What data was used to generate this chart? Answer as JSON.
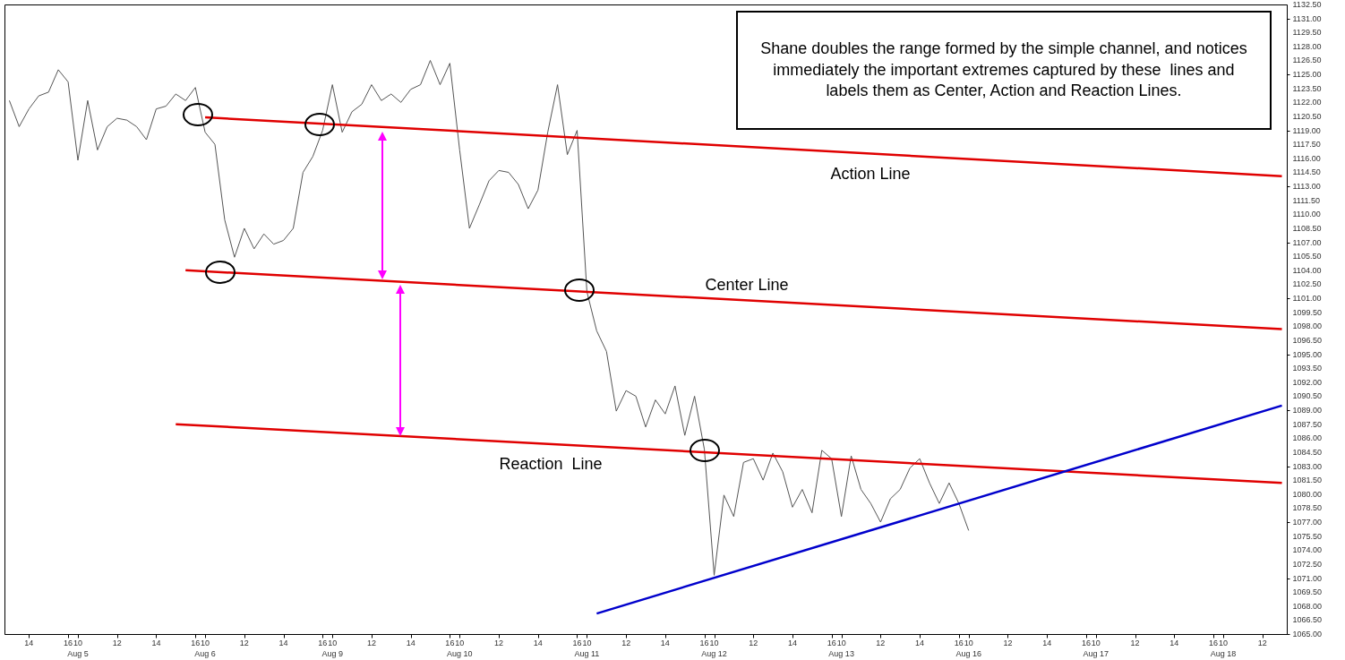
{
  "chart_data": {
    "type": "line",
    "categories": [
      null,
      null,
      "14",
      null,
      null,
      null,
      "16",
      "10\nAug 5",
      null,
      null,
      null,
      "12",
      null,
      null,
      null,
      "14",
      null,
      null,
      null,
      "16",
      "10\nAug 6",
      null,
      null,
      null,
      "12",
      null,
      null,
      null,
      "14",
      null,
      null,
      null,
      "16",
      "10\nAug 9",
      null,
      null,
      null,
      "12",
      null,
      null,
      null,
      "14",
      null,
      null,
      null,
      "16",
      "10\nAug 10",
      null,
      null,
      null,
      "12",
      null,
      null,
      null,
      "14",
      null,
      null,
      null,
      "16",
      "10\nAug 11",
      null,
      null,
      null,
      "12",
      null,
      null,
      null,
      "14",
      null,
      null,
      null,
      "16",
      "10\nAug 12",
      null,
      null,
      null,
      "12",
      null,
      null,
      null,
      "14",
      null,
      null,
      null,
      "16",
      "10\nAug 13",
      null,
      null,
      null,
      "12",
      null,
      null,
      null,
      "14",
      null,
      null,
      null,
      "16",
      "10\nAug 16",
      null,
      null,
      null,
      "12",
      null,
      null,
      null,
      "14",
      null,
      null,
      null,
      "16",
      "10\nAug 17",
      null,
      null,
      null,
      "12",
      null,
      null,
      null,
      "14",
      null,
      null,
      null,
      "16",
      "10\nAug 18",
      null,
      null,
      null,
      "12",
      null,
      null
    ],
    "ylim": [
      1065,
      1132.5
    ],
    "yticks": [
      {
        "value": 1065,
        "label": "1065.00"
      },
      {
        "value": 1066.5,
        "label": "1066.50"
      },
      {
        "value": 1068,
        "label": "1068.00"
      },
      {
        "value": 1069.5,
        "label": "1069.50"
      },
      {
        "value": 1071,
        "label": "1071.00"
      },
      {
        "value": 1072.5,
        "label": "1072.50"
      },
      {
        "value": 1074,
        "label": "1074.00"
      },
      {
        "value": 1075.5,
        "label": "1075.50"
      },
      {
        "value": 1077,
        "label": "1077.00"
      },
      {
        "value": 1078.5,
        "label": "1078.50"
      },
      {
        "value": 1080,
        "label": "1080.00"
      },
      {
        "value": 1081.5,
        "label": "1081.50"
      },
      {
        "value": 1083,
        "label": "1083.00"
      },
      {
        "value": 1084.5,
        "label": "1084.50"
      },
      {
        "value": 1086,
        "label": "1086.00"
      },
      {
        "value": 1087.5,
        "label": "1087.50"
      },
      {
        "value": 1089,
        "label": "1089.00"
      },
      {
        "value": 1090.5,
        "label": "1090.50"
      },
      {
        "value": 1092,
        "label": "1092.00"
      },
      {
        "value": 1093.5,
        "label": "1093.50"
      },
      {
        "value": 1095,
        "label": "1095.00"
      },
      {
        "value": 1096.5,
        "label": "1096.50"
      },
      {
        "value": 1098,
        "label": "1098.00"
      },
      {
        "value": 1099.5,
        "label": "1099.50"
      },
      {
        "value": 1101,
        "label": "1101.00"
      },
      {
        "value": 1102.5,
        "label": "1102.50"
      },
      {
        "value": 1104,
        "label": "1104.00"
      },
      {
        "value": 1105.5,
        "label": "1105.50"
      },
      {
        "value": 1107,
        "label": "1107.00"
      },
      {
        "value": 1108.5,
        "label": "1108.50"
      },
      {
        "value": 1110,
        "label": "1110.00"
      },
      {
        "value": 1111.5,
        "label": "1111.50"
      },
      {
        "value": 1113,
        "label": "1113.00"
      },
      {
        "value": 1114.5,
        "label": "1114.50"
      },
      {
        "value": 1116,
        "label": "1116.00"
      },
      {
        "value": 1117.5,
        "label": "1117.50"
      },
      {
        "value": 1119,
        "label": "1119.00"
      },
      {
        "value": 1120.5,
        "label": "1120.50"
      },
      {
        "value": 1122,
        "label": "1122.00"
      },
      {
        "value": 1123.5,
        "label": "1123.50"
      },
      {
        "value": 1125,
        "label": "1125.00"
      },
      {
        "value": 1126.5,
        "label": "1126.50"
      },
      {
        "value": 1128,
        "label": "1128.00"
      },
      {
        "value": 1129.5,
        "label": "1129.50"
      },
      {
        "value": 1131,
        "label": "1131.00"
      },
      {
        "value": 1132.5,
        "label": "1132.50"
      }
    ],
    "series": [
      {
        "color": "#555555",
        "values": [
          1122.2,
          1119.4,
          1121.3,
          1122.7,
          1123.1,
          1125.5,
          1124.2,
          1115.8,
          1122.2,
          1116.9,
          1119.4,
          1120.3,
          1120.1,
          1119.4,
          1118.0,
          1121.3,
          1121.6,
          1122.9,
          1122.2,
          1123.6,
          1118.8,
          1117.5,
          1109.4,
          1105.4,
          1108.5,
          1106.3,
          1107.9,
          1106.8,
          1107.2,
          1108.5,
          1114.5,
          1116.2,
          1119.0,
          1123.9,
          1118.8,
          1121.0,
          1121.8,
          1123.9,
          1122.2,
          1122.9,
          1122.0,
          1123.4,
          1123.9,
          1126.5,
          1123.9,
          1126.2,
          1116.9,
          1108.5,
          1111.0,
          1113.6,
          1114.7,
          1114.5,
          1113.2,
          1110.6,
          1112.6,
          1118.8,
          1123.9,
          1116.4,
          1119.0,
          1101.7,
          1097.5,
          1095.3,
          1088.9,
          1091.1,
          1090.5,
          1087.2,
          1090.1,
          1088.6,
          1091.6,
          1086.3,
          1090.5,
          1084.8,
          1071.3,
          1079.9,
          1077.6,
          1083.4,
          1083.8,
          1081.5,
          1084.4,
          1082.4,
          1078.6,
          1080.5,
          1078.0,
          1084.7,
          1083.8,
          1077.6,
          1084.1,
          1080.5,
          1079.0,
          1077.0,
          1079.5,
          1080.5,
          1082.8,
          1083.8,
          1081.2,
          1079.0,
          1081.2,
          1079.0,
          1076.1,
          null,
          null,
          null,
          null,
          null,
          null,
          null,
          null,
          null,
          null,
          null,
          null,
          null,
          null,
          null,
          null,
          null,
          null,
          null,
          null,
          null,
          null,
          null,
          null,
          null,
          null,
          null,
          null,
          null,
          null,
          null,
          null
        ]
      },
      {
        "color": "#e00000",
        "values": [
          null,
          null,
          null,
          null,
          null,
          null,
          null,
          null,
          null,
          null,
          null,
          null,
          null,
          null,
          null,
          null,
          null,
          null,
          null,
          null,
          1120.4,
          null,
          null,
          null,
          null,
          null,
          null,
          null,
          null,
          null,
          null,
          null,
          null,
          null,
          null,
          null,
          null,
          null,
          null,
          null,
          null,
          null,
          null,
          null,
          null,
          null,
          null,
          null,
          null,
          null,
          null,
          null,
          null,
          null,
          null,
          null,
          null,
          null,
          null,
          null,
          null,
          null,
          null,
          null,
          null,
          null,
          null,
          null,
          null,
          null,
          null,
          null,
          null,
          null,
          null,
          null,
          null,
          null,
          null,
          null,
          null,
          null,
          null,
          null,
          null,
          null,
          null,
          null,
          null,
          null,
          null,
          null,
          null,
          null,
          null,
          null,
          null,
          null,
          null,
          null,
          null,
          null,
          null,
          null,
          null,
          null,
          null,
          null,
          null,
          null,
          null,
          null,
          null,
          null,
          null,
          null,
          null,
          null,
          null,
          null,
          null,
          null,
          null,
          null,
          null,
          null,
          null,
          null,
          null,
          null,
          1114.1
        ]
      },
      {
        "color": "#e00000",
        "values": [
          null,
          null,
          null,
          null,
          null,
          null,
          null,
          null,
          null,
          null,
          null,
          null,
          null,
          null,
          null,
          null,
          null,
          null,
          1104.0,
          null,
          null,
          null,
          null,
          null,
          null,
          null,
          null,
          null,
          null,
          null,
          null,
          null,
          null,
          null,
          null,
          null,
          null,
          null,
          null,
          null,
          null,
          null,
          null,
          null,
          null,
          null,
          null,
          null,
          null,
          null,
          null,
          null,
          null,
          null,
          null,
          null,
          null,
          null,
          null,
          null,
          null,
          null,
          null,
          null,
          null,
          null,
          null,
          null,
          null,
          null,
          null,
          null,
          null,
          null,
          null,
          null,
          null,
          null,
          null,
          null,
          null,
          null,
          null,
          null,
          null,
          null,
          null,
          null,
          null,
          null,
          null,
          null,
          null,
          null,
          null,
          null,
          null,
          null,
          null,
          null,
          null,
          null,
          null,
          null,
          null,
          null,
          null,
          null,
          null,
          null,
          null,
          null,
          null,
          null,
          null,
          null,
          null,
          null,
          null,
          null,
          null,
          null,
          null,
          null,
          null,
          null,
          null,
          null,
          null,
          null,
          1097.7
        ]
      },
      {
        "color": "#e00000",
        "values": [
          null,
          null,
          null,
          null,
          null,
          null,
          null,
          null,
          null,
          null,
          null,
          null,
          null,
          null,
          null,
          null,
          null,
          1087.5,
          null,
          null,
          null,
          null,
          null,
          null,
          null,
          null,
          null,
          null,
          null,
          null,
          null,
          null,
          null,
          null,
          null,
          null,
          null,
          null,
          null,
          null,
          null,
          null,
          null,
          null,
          null,
          null,
          null,
          null,
          null,
          null,
          null,
          null,
          null,
          null,
          null,
          null,
          null,
          null,
          null,
          null,
          null,
          null,
          null,
          null,
          null,
          null,
          null,
          null,
          null,
          null,
          null,
          null,
          null,
          null,
          null,
          null,
          null,
          null,
          null,
          null,
          null,
          null,
          null,
          null,
          null,
          null,
          null,
          null,
          null,
          null,
          null,
          null,
          null,
          null,
          null,
          null,
          null,
          null,
          null,
          null,
          null,
          null,
          null,
          null,
          null,
          null,
          null,
          null,
          null,
          null,
          null,
          null,
          null,
          null,
          null,
          null,
          null,
          null,
          null,
          null,
          null,
          null,
          null,
          null,
          null,
          null,
          null,
          null,
          null,
          null,
          1081.2
        ]
      },
      {
        "color": "#0000cc",
        "values": [
          null,
          null,
          null,
          null,
          null,
          null,
          null,
          null,
          null,
          null,
          null,
          null,
          null,
          null,
          null,
          null,
          null,
          null,
          null,
          null,
          null,
          null,
          null,
          null,
          null,
          null,
          null,
          null,
          null,
          null,
          null,
          null,
          null,
          null,
          null,
          null,
          null,
          null,
          null,
          null,
          null,
          null,
          null,
          null,
          null,
          null,
          null,
          null,
          null,
          null,
          null,
          null,
          null,
          null,
          null,
          null,
          null,
          null,
          null,
          null,
          1067.2,
          null,
          null,
          null,
          null,
          null,
          null,
          null,
          null,
          null,
          null,
          null,
          null,
          null,
          null,
          null,
          null,
          null,
          null,
          null,
          null,
          null,
          null,
          null,
          null,
          null,
          null,
          null,
          null,
          null,
          null,
          null,
          null,
          null,
          null,
          null,
          null,
          null,
          null,
          null,
          null,
          null,
          null,
          null,
          null,
          null,
          null,
          null,
          null,
          null,
          null,
          null,
          null,
          null,
          null,
          null,
          null,
          null,
          null,
          null,
          null,
          null,
          null,
          null,
          null,
          null,
          null,
          null,
          null,
          null,
          1089.5
        ]
      }
    ],
    "annotations": [
      "Action Line",
      "Center Line",
      "Reaction  Line",
      "Shane doubles the range formed by the simple channel, and notices immediately the important extremes captured by these  lines and labels them as Center, Action and Reaction Lines."
    ]
  }
}
